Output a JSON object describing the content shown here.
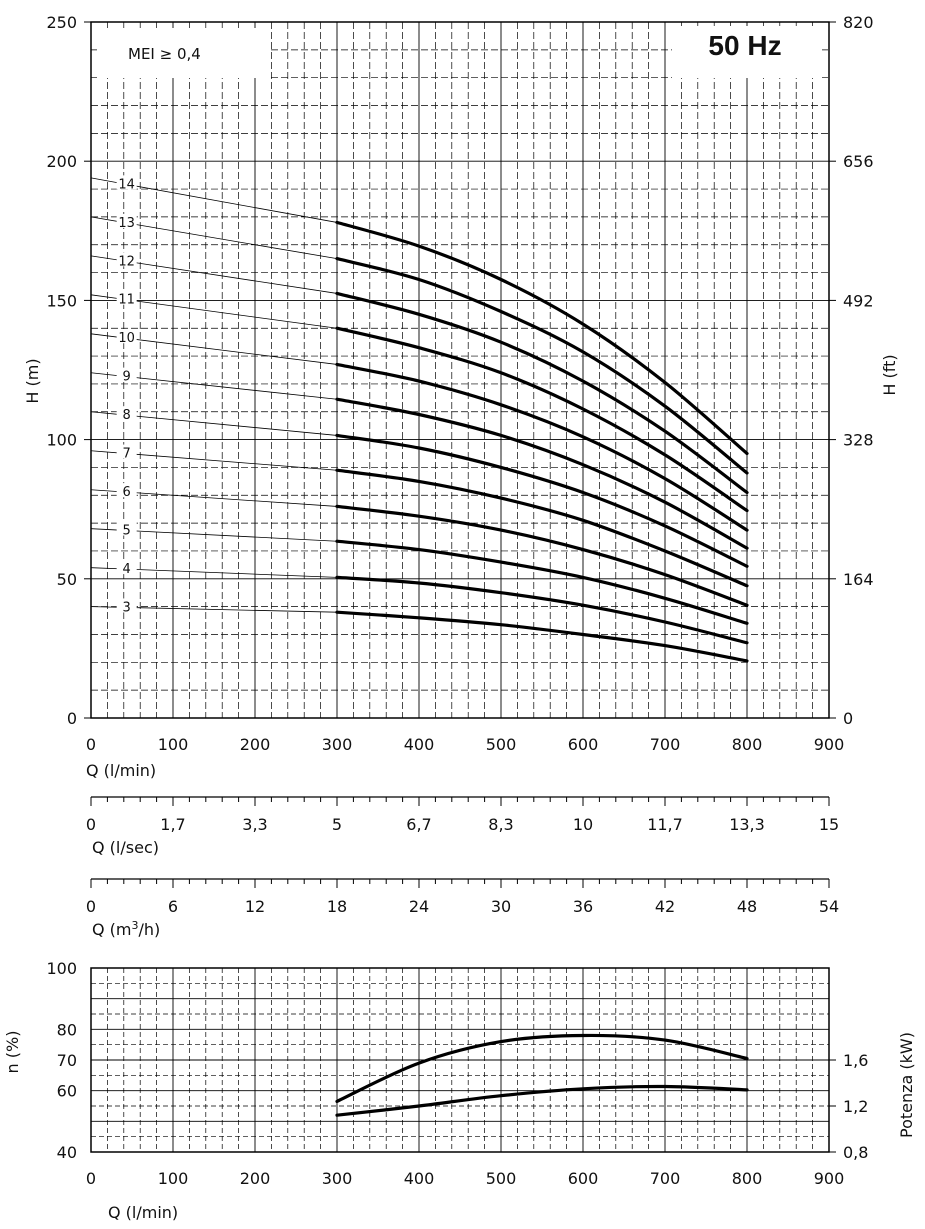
{
  "chart_data": [
    {
      "type": "line",
      "id": "head-curves",
      "frequency_label": "50 Hz",
      "mei_label": "MEI ≥ 0,4",
      "xlabel": "Q (l/min)",
      "ylabel_left": "H (m)",
      "ylabel_right": "H (ft)",
      "xlim": [
        0,
        900
      ],
      "ylim": [
        0,
        250
      ],
      "x_ticks": [
        "0",
        "100",
        "200",
        "300",
        "400",
        "500",
        "600",
        "700",
        "800",
        "900"
      ],
      "y_ticks_left": [
        "0",
        "50",
        "100",
        "150",
        "200",
        "250"
      ],
      "y_ticks_right": [
        "0",
        "164",
        "328",
        "492",
        "656",
        "820"
      ],
      "extension_start_x": 0,
      "series": [
        {
          "name": "3",
          "label_h": 40,
          "x": [
            300,
            400,
            500,
            600,
            700,
            800
          ],
          "y": [
            38,
            36,
            33.5,
            30,
            26,
            20.5
          ]
        },
        {
          "name": "4",
          "label_h": 54,
          "x": [
            300,
            400,
            500,
            600,
            700,
            800
          ],
          "y": [
            50.5,
            48.5,
            45,
            40.5,
            34.5,
            27
          ]
        },
        {
          "name": "5",
          "label_h": 68,
          "x": [
            300,
            400,
            500,
            600,
            700,
            800
          ],
          "y": [
            63.5,
            60.5,
            56,
            50.5,
            43,
            34
          ]
        },
        {
          "name": "6",
          "label_h": 82,
          "x": [
            300,
            400,
            500,
            600,
            700,
            800
          ],
          "y": [
            76,
            72.5,
            67.5,
            60.5,
            51.5,
            40.5
          ]
        },
        {
          "name": "7",
          "label_h": 96,
          "x": [
            300,
            400,
            500,
            600,
            700,
            800
          ],
          "y": [
            89,
            85,
            79,
            71,
            60,
            47.5
          ]
        },
        {
          "name": "8",
          "label_h": 110,
          "x": [
            300,
            400,
            500,
            600,
            700,
            800
          ],
          "y": [
            101.5,
            97,
            90,
            81,
            69,
            54.5
          ]
        },
        {
          "name": "9",
          "label_h": 124,
          "x": [
            300,
            400,
            500,
            600,
            700,
            800
          ],
          "y": [
            114.5,
            109,
            101.5,
            91,
            77.5,
            61
          ]
        },
        {
          "name": "10",
          "label_h": 138,
          "x": [
            300,
            400,
            500,
            600,
            700,
            800
          ],
          "y": [
            127,
            121,
            112.5,
            101,
            86,
            67.5
          ]
        },
        {
          "name": "11",
          "label_h": 152,
          "x": [
            300,
            400,
            500,
            600,
            700,
            800
          ],
          "y": [
            140,
            133,
            124,
            111,
            94.5,
            74.5
          ]
        },
        {
          "name": "12",
          "label_h": 166,
          "x": [
            300,
            400,
            500,
            600,
            700,
            800
          ],
          "y": [
            152.5,
            145,
            135,
            121,
            103,
            81
          ]
        },
        {
          "name": "13",
          "label_h": 180,
          "x": [
            300,
            400,
            500,
            600,
            700,
            800
          ],
          "y": [
            165,
            157.5,
            146,
            131.5,
            112,
            88
          ]
        },
        {
          "name": "14",
          "label_h": 194,
          "x": [
            300,
            400,
            500,
            600,
            700,
            800
          ],
          "y": [
            178,
            169.5,
            157.5,
            141.5,
            120.5,
            95
          ]
        }
      ]
    },
    {
      "type": "axis",
      "id": "flow-ls",
      "xlabel": "Q (l/sec)",
      "ticks": [
        "0",
        "1,7",
        "3,3",
        "5",
        "6,7",
        "8,3",
        "10",
        "11,7",
        "13,3",
        "15"
      ]
    },
    {
      "type": "axis",
      "id": "flow-m3h",
      "xlabel_main": "Q (m",
      "xlabel_sup": "3",
      "xlabel_end": "/h)",
      "ticks": [
        "0",
        "6",
        "12",
        "18",
        "24",
        "30",
        "36",
        "42",
        "48",
        "54"
      ]
    },
    {
      "type": "line",
      "id": "efficiency-power",
      "xlabel": "Q (l/min)",
      "ylabel_left": "n (%)",
      "ylabel_right": "Potenza (kW)",
      "xlim": [
        0,
        900
      ],
      "ylim": [
        40,
        100
      ],
      "x_ticks": [
        "0",
        "100",
        "200",
        "300",
        "400",
        "500",
        "600",
        "700",
        "800",
        "900"
      ],
      "y_ticks_left": [
        "40",
        "60",
        "70",
        "80",
        "100"
      ],
      "y_ticks_left_values": [
        40,
        60,
        70,
        80,
        100
      ],
      "y_ticks_right": [
        "0,8",
        "1,2",
        "1,6"
      ],
      "y_ticks_right_values": [
        0.8,
        1.2,
        1.6
      ],
      "power_range": [
        0.8,
        2.4
      ],
      "efficiency": {
        "name": "n (%)",
        "x": [
          300,
          400,
          500,
          600,
          700,
          800
        ],
        "y": [
          56.5,
          69,
          76,
          78,
          76.5,
          70.5
        ]
      },
      "power": {
        "name": "Potenza (kW)",
        "x": [
          300,
          400,
          500,
          600,
          700,
          800
        ],
        "y": [
          1.12,
          1.2,
          1.29,
          1.35,
          1.37,
          1.34
        ]
      }
    }
  ]
}
